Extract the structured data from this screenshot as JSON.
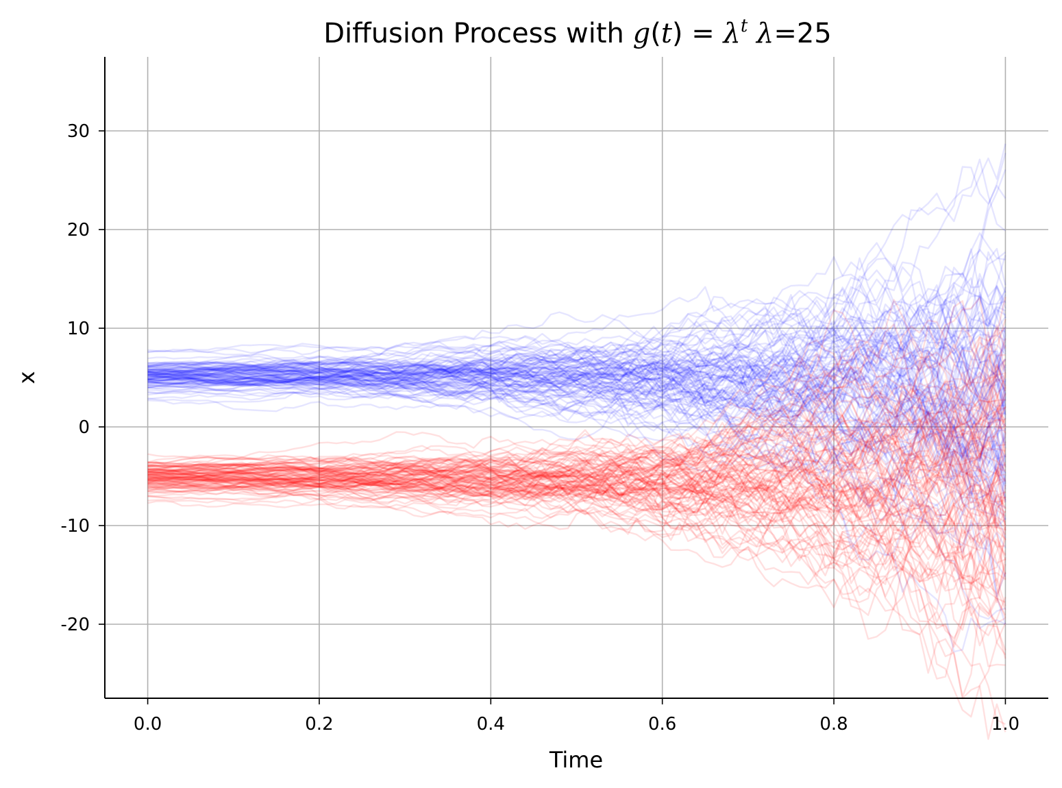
{
  "chart_data": {
    "type": "line",
    "title": {
      "prefix": "Diffusion Process with ",
      "math_g": "g",
      "math_open": "(",
      "math_t": "t",
      "math_close": ")",
      "math_eq": " = ",
      "math_lambda": "λ",
      "math_sup": "t",
      "math_lambda2": "λ",
      "suffix": "=25"
    },
    "xlabel": "Time",
    "ylabel": "x",
    "xlim": [
      -0.05,
      1.05
    ],
    "ylim": [
      -27.5,
      37.5
    ],
    "xticks": [
      0.0,
      0.2,
      0.4,
      0.6,
      0.8,
      1.0
    ],
    "xtick_labels": [
      "0.0",
      "0.2",
      "0.4",
      "0.6",
      "0.8",
      "1.0"
    ],
    "yticks": [
      -20,
      -10,
      0,
      10,
      20,
      30
    ],
    "ytick_labels": [
      "-20",
      "-10",
      "0",
      "10",
      "20",
      "30"
    ],
    "grid": true,
    "lambda": 25,
    "steps": 100,
    "series": [
      {
        "start": 5,
        "color": "#0000ff",
        "count": 100,
        "opacity": 0.1
      },
      {
        "start": -5,
        "color": "#ff0000",
        "count": 100,
        "opacity": 0.12
      }
    ]
  }
}
